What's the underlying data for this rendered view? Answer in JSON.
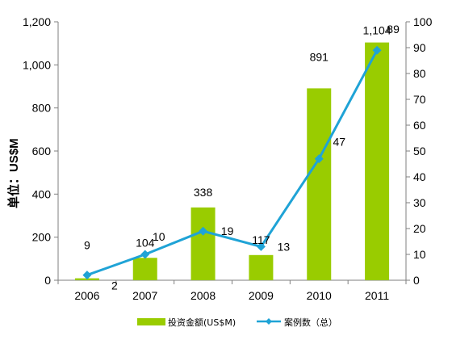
{
  "chart_data": {
    "type": "bar+line",
    "categories": [
      "2006",
      "2007",
      "2008",
      "2009",
      "2010",
      "2011"
    ],
    "series": [
      {
        "name": "投资金额(US$M)",
        "type": "bar",
        "axis": "left",
        "values": [
          9,
          104,
          338,
          117,
          891,
          1104
        ],
        "labels": [
          "9",
          "104",
          "338",
          "117",
          "891",
          "1,104"
        ],
        "color": "#99CC00"
      },
      {
        "name": "案例数（总）",
        "type": "line",
        "axis": "right",
        "values": [
          2,
          10,
          19,
          13,
          47,
          89
        ],
        "labels": [
          "2",
          "10",
          "19",
          "13",
          "47",
          "89"
        ],
        "color": "#1FA3D6"
      }
    ],
    "ylabel": "单位：US$M",
    "ylim_left": [
      0,
      1200
    ],
    "ylim_right": [
      0,
      100
    ],
    "yticks_left": [
      "0",
      "200",
      "400",
      "600",
      "800",
      "1,000",
      "1,200"
    ],
    "yticks_right": [
      "0",
      "10",
      "20",
      "30",
      "40",
      "50",
      "60",
      "70",
      "80",
      "90",
      "100"
    ],
    "grid": false,
    "legend_position": "bottom"
  }
}
